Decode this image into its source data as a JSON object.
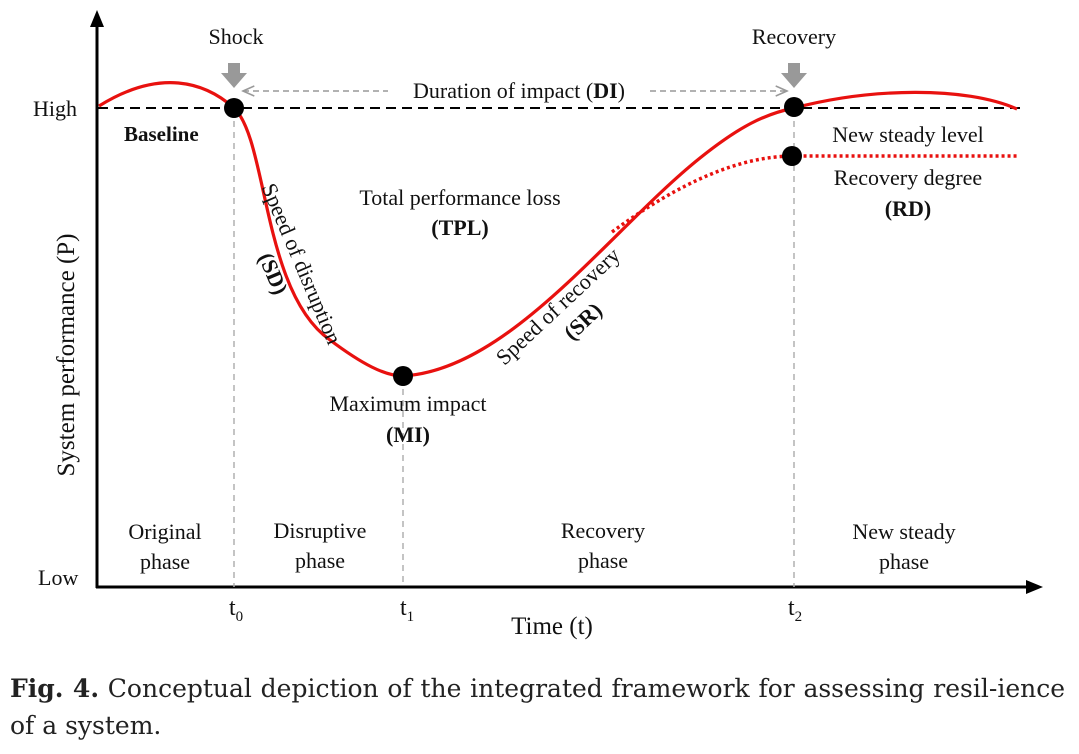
{
  "labels": {
    "shock": "Shock",
    "recovery": "Recovery",
    "high": "High",
    "low": "Low",
    "baseline": "Baseline",
    "duration_text": "Duration of impact (",
    "duration_abbr": "DI",
    "duration_close": ")",
    "tpl_line1": "Total performance loss",
    "tpl_abbr": "(TPL)",
    "sd_line1": "Speed of disruption",
    "sd_abbr": "(SD)",
    "sr_line1": "Speed of recovery",
    "sr_abbr": "(SR)",
    "mi_line1": "Maximum impact",
    "mi_abbr": "(MI)",
    "new_steady_level": "New steady level",
    "rd_line1": "Recovery degree",
    "rd_abbr": "(RD)",
    "y_axis": "System performance (P)",
    "x_axis": "Time (t)",
    "phase_original_1": "Original",
    "phase_original_2": "phase",
    "phase_disruptive_1": "Disruptive",
    "phase_disruptive_2": "phase",
    "phase_recovery_1": "Recovery",
    "phase_recovery_2": "phase",
    "phase_newsteady_1": "New steady",
    "phase_newsteady_2": "phase",
    "t0": "t",
    "t0_sub": "0",
    "t1": "t",
    "t1_sub": "1",
    "t2": "t",
    "t2_sub": "2"
  },
  "caption": {
    "label": "Fig. 4.",
    "text": " Conceptual depiction of the integrated framework for assessing resil-ience of a system."
  },
  "colors": {
    "curve": "#e8110f",
    "axis": "#000000",
    "guide": "#aaaaaa",
    "arrow": "#999999"
  }
}
